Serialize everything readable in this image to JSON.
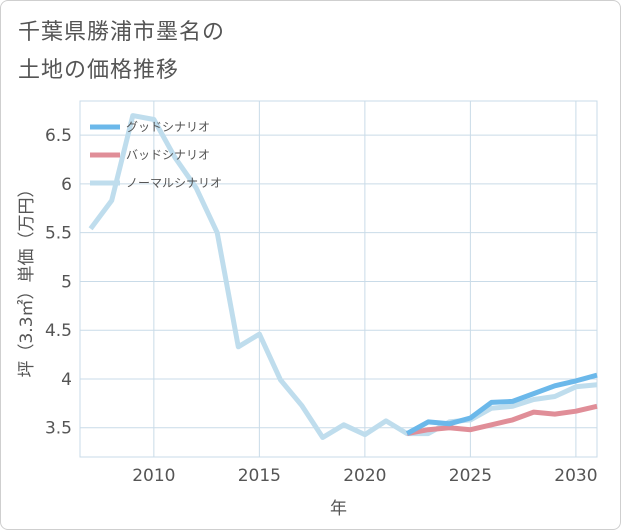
{
  "title_lines": [
    "千葉県勝浦市墨名の",
    "土地の価格推移"
  ],
  "chart_data": {
    "type": "line",
    "xlabel": "年",
    "ylabel": "坪（3.3㎡）単価（万円）",
    "xlim": [
      2006.5,
      2031
    ],
    "ylim": [
      3.2,
      6.85
    ],
    "x_ticks": [
      2010,
      2015,
      2020,
      2025,
      2030
    ],
    "y_ticks": [
      3.5,
      4,
      4.5,
      5,
      5.5,
      6,
      6.5
    ],
    "legend_position": "top-left",
    "series": [
      {
        "name": "グッドシナリオ",
        "color": "#6bb8ea",
        "x": [
          2022,
          2023,
          2024,
          2025,
          2026,
          2027,
          2028,
          2029,
          2030,
          2031
        ],
        "values": [
          3.44,
          3.56,
          3.54,
          3.6,
          3.76,
          3.77,
          3.85,
          3.93,
          3.98,
          4.04
        ]
      },
      {
        "name": "バッドシナリオ",
        "color": "#e08e98",
        "x": [
          2022,
          2023,
          2024,
          2025,
          2026,
          2027,
          2028,
          2029,
          2030,
          2031
        ],
        "values": [
          3.44,
          3.48,
          3.5,
          3.48,
          3.53,
          3.58,
          3.66,
          3.64,
          3.67,
          3.72
        ]
      },
      {
        "name": "ノーマルシナリオ",
        "color": "#bfdded",
        "x": [
          2007,
          2008,
          2009,
          2010,
          2011,
          2012,
          2013,
          2014,
          2015,
          2016,
          2017,
          2018,
          2019,
          2020,
          2021,
          2022,
          2023,
          2024,
          2025,
          2026,
          2027,
          2028,
          2029,
          2030,
          2031
        ],
        "values": [
          5.54,
          5.83,
          6.7,
          6.66,
          6.27,
          5.96,
          5.5,
          4.33,
          4.46,
          3.99,
          3.73,
          3.4,
          3.53,
          3.43,
          3.57,
          3.44,
          3.44,
          3.56,
          3.58,
          3.7,
          3.72,
          3.79,
          3.82,
          3.92,
          3.94
        ]
      }
    ]
  }
}
